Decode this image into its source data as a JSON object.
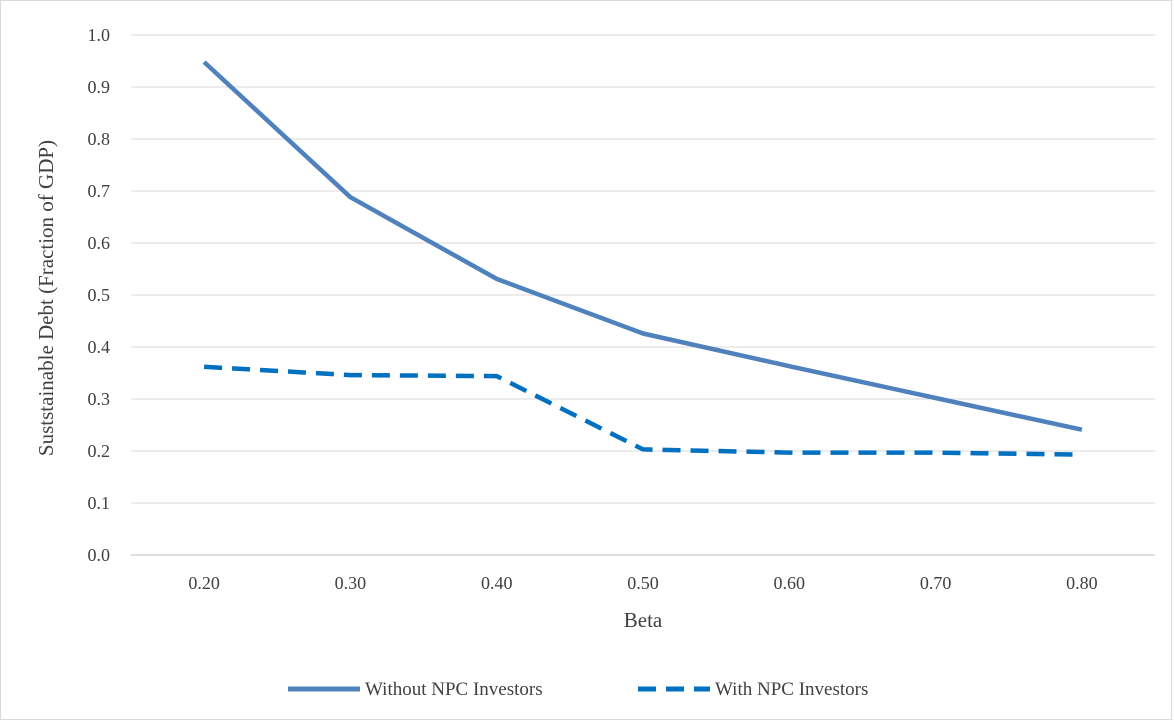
{
  "chart_data": {
    "type": "line",
    "title": "",
    "xlabel": "Beta",
    "ylabel": "Suststainable Debt (Fraction of GDP)",
    "categories": [
      "0.20",
      "0.30",
      "0.40",
      "0.50",
      "0.60",
      "0.70",
      "0.80"
    ],
    "y_ticks": [
      "0.0",
      "0.1",
      "0.2",
      "0.3",
      "0.4",
      "0.5",
      "0.6",
      "0.7",
      "0.8",
      "0.9",
      "1.0"
    ],
    "ylim": [
      0,
      1.0
    ],
    "grid": "horizontal",
    "legend_position": "bottom",
    "series": [
      {
        "name": "Without NPC Investors",
        "values": [
          0.948,
          0.688,
          0.531,
          0.426,
          0.363,
          0.302,
          0.241
        ],
        "color": "#4f81bd",
        "style": "solid"
      },
      {
        "name": "With NPC Investors",
        "values": [
          0.362,
          0.346,
          0.344,
          0.203,
          0.197,
          0.197,
          0.193
        ],
        "color": "#0070c0",
        "style": "dashed"
      }
    ]
  }
}
